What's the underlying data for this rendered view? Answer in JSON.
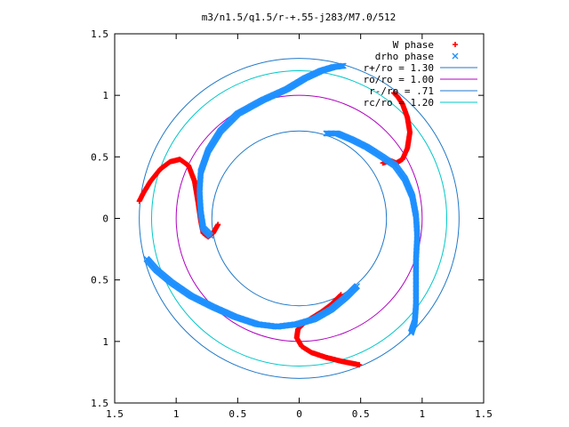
{
  "chart_data": {
    "type": "scatter",
    "title": "m3/n1.5/q1.5/r-+.55-j283/M7.0/512",
    "xlabel": "",
    "ylabel": "",
    "xlim": [
      -1.5,
      1.5
    ],
    "ylim": [
      -1.5,
      1.5
    ],
    "xticks": [
      -1.5,
      -1,
      -0.5,
      0,
      0.5,
      1,
      1.5
    ],
    "yticks": [
      -1.5,
      -1,
      -0.5,
      0,
      0.5,
      1,
      1.5
    ],
    "xtick_labels": [
      "1.5",
      "1",
      "0.5",
      "0",
      "0.5",
      "1",
      "1.5"
    ],
    "ytick_labels": [
      "1.5",
      "1",
      "0.5",
      "0",
      "0.5",
      "1",
      "1.5"
    ],
    "grid": false,
    "legend_position": "top-right",
    "series": [
      {
        "name": "W phase",
        "kind": "points",
        "marker": "+",
        "color": "#ff0000",
        "arms": [
          [
            [
              -0.66,
              -0.05
            ],
            [
              -0.7,
              -0.12
            ],
            [
              -0.74,
              -0.15
            ],
            [
              -0.78,
              -0.12
            ],
            [
              -0.8,
              -0.02
            ],
            [
              -0.82,
              0.12
            ],
            [
              -0.85,
              0.3
            ],
            [
              -0.9,
              0.43
            ],
            [
              -0.97,
              0.48
            ],
            [
              -1.05,
              0.46
            ],
            [
              -1.13,
              0.4
            ],
            [
              -1.21,
              0.3
            ],
            [
              -1.27,
              0.2
            ],
            [
              -1.3,
              0.14
            ]
          ],
          [
            [
              0.34,
              -0.62
            ],
            [
              0.26,
              -0.7
            ],
            [
              0.18,
              -0.76
            ],
            [
              0.1,
              -0.81
            ],
            [
              0.04,
              -0.85
            ],
            [
              -0.01,
              -0.9
            ],
            [
              -0.02,
              -0.97
            ],
            [
              0.02,
              -1.04
            ],
            [
              0.1,
              -1.09
            ],
            [
              0.22,
              -1.13
            ],
            [
              0.34,
              -1.16
            ],
            [
              0.44,
              -1.18
            ],
            [
              0.49,
              -1.19
            ]
          ],
          [
            [
              0.68,
              0.45
            ],
            [
              0.74,
              0.47
            ],
            [
              0.79,
              0.45
            ],
            [
              0.84,
              0.48
            ],
            [
              0.88,
              0.57
            ],
            [
              0.9,
              0.7
            ],
            [
              0.88,
              0.82
            ],
            [
              0.84,
              0.93
            ],
            [
              0.8,
              0.99
            ],
            [
              0.77,
              1.02
            ]
          ]
        ]
      },
      {
        "name": "drho phase",
        "kind": "points",
        "marker": "x",
        "color": "#1e90ff",
        "arms": [
          [
            [
              -0.72,
              -0.14
            ],
            [
              -0.78,
              -0.08
            ],
            [
              -0.8,
              0.05
            ],
            [
              -0.81,
              0.22
            ],
            [
              -0.8,
              0.38
            ],
            [
              -0.74,
              0.55
            ],
            [
              -0.64,
              0.71
            ],
            [
              -0.5,
              0.85
            ],
            [
              -0.3,
              0.96
            ],
            [
              -0.1,
              1.05
            ],
            [
              0.05,
              1.14
            ],
            [
              0.18,
              1.2
            ],
            [
              0.28,
              1.23
            ],
            [
              0.36,
              1.24
            ]
          ],
          [
            [
              0.22,
              0.69
            ],
            [
              0.31,
              0.69
            ],
            [
              0.43,
              0.64
            ],
            [
              0.55,
              0.58
            ],
            [
              0.66,
              0.51
            ],
            [
              0.78,
              0.43
            ],
            [
              0.86,
              0.32
            ],
            [
              0.92,
              0.18
            ],
            [
              0.95,
              0.02
            ],
            [
              0.96,
              -0.14
            ],
            [
              0.95,
              -0.34
            ],
            [
              0.95,
              -0.52
            ],
            [
              0.95,
              -0.7
            ],
            [
              0.94,
              -0.84
            ],
            [
              0.91,
              -0.93
            ]
          ],
          [
            [
              0.47,
              -0.55
            ],
            [
              0.38,
              -0.64
            ],
            [
              0.26,
              -0.74
            ],
            [
              0.12,
              -0.82
            ],
            [
              -0.02,
              -0.86
            ],
            [
              -0.18,
              -0.88
            ],
            [
              -0.34,
              -0.86
            ],
            [
              -0.52,
              -0.8
            ],
            [
              -0.7,
              -0.72
            ],
            [
              -0.88,
              -0.63
            ],
            [
              -1.04,
              -0.52
            ],
            [
              -1.16,
              -0.42
            ],
            [
              -1.24,
              -0.33
            ]
          ]
        ]
      },
      {
        "name": "r+/ro = 1.30",
        "kind": "circle",
        "radius": 1.3,
        "color": "#1f78c8"
      },
      {
        "name": "ro/ro = 1.00",
        "kind": "circle",
        "radius": 1.0,
        "color": "#b000c0"
      },
      {
        "name": "r-/ro = .71",
        "kind": "circle",
        "radius": 0.71,
        "color": "#1f78c8"
      },
      {
        "name": "rc/ro = 1.20",
        "kind": "circle",
        "radius": 1.2,
        "color": "#00c8c8"
      }
    ]
  }
}
